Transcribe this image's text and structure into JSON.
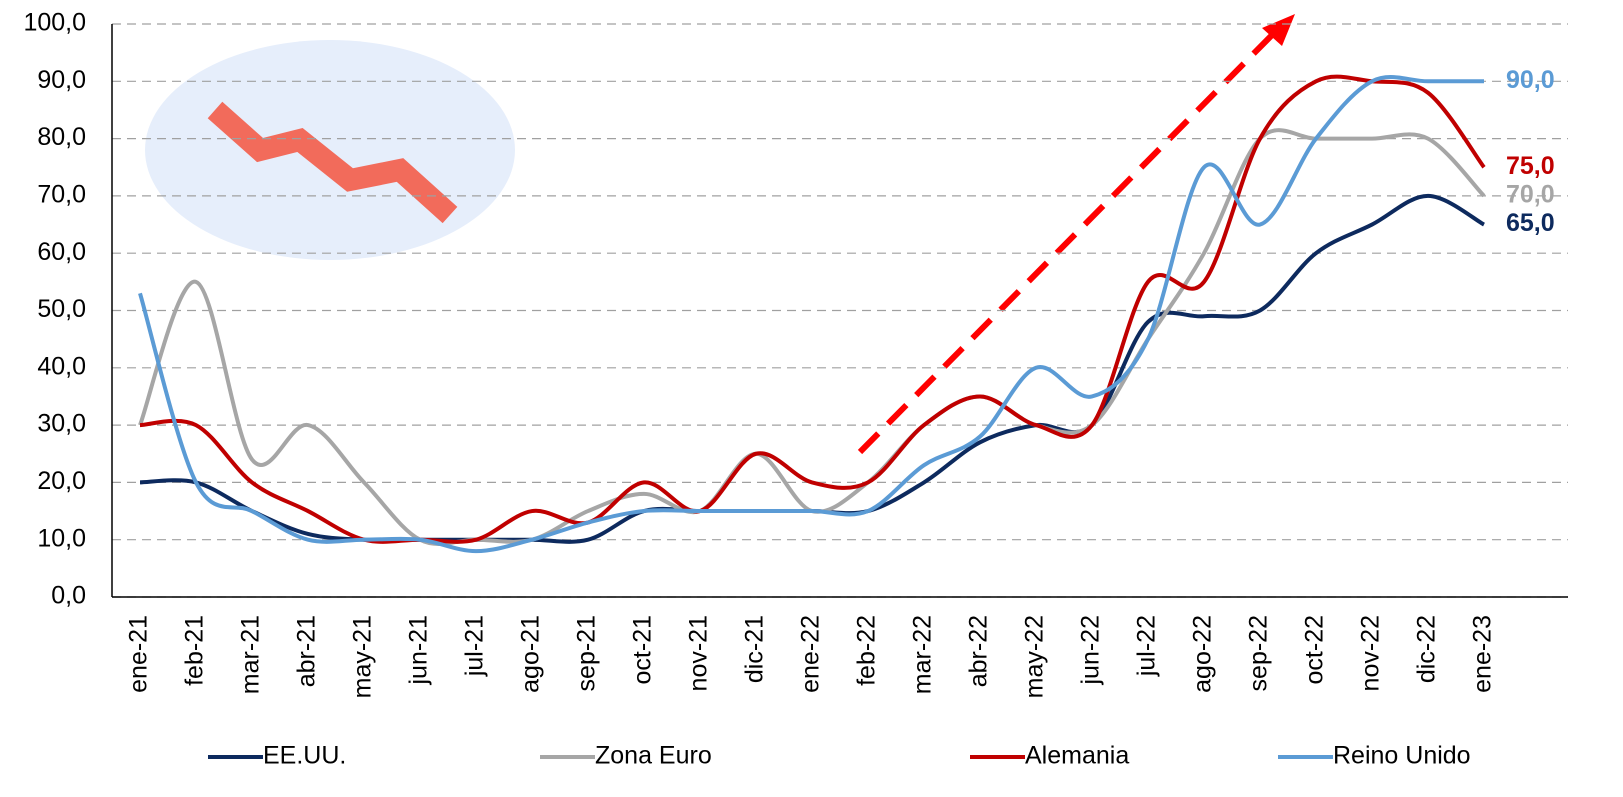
{
  "chart_data": {
    "type": "line",
    "categories": [
      "ene-21",
      "feb-21",
      "mar-21",
      "abr-21",
      "may-21",
      "jun-21",
      "jul-21",
      "ago-21",
      "sep-21",
      "oct-21",
      "nov-21",
      "dic-21",
      "ene-22",
      "feb-22",
      "mar-22",
      "abr-22",
      "may-22",
      "jun-22",
      "jul-22",
      "ago-22",
      "sep-22",
      "oct-22",
      "nov-22",
      "dic-22",
      "ene-23"
    ],
    "series": [
      {
        "name": "EE.UU.",
        "color": "#0d2a5e",
        "values": [
          20,
          20,
          15,
          11,
          10,
          10,
          10,
          10,
          10,
          15,
          15,
          15,
          15,
          15,
          20,
          27,
          30,
          30,
          48,
          49,
          50,
          60,
          65,
          70,
          65
        ],
        "value_labels": [
          null,
          null,
          null,
          null,
          null,
          null,
          null,
          null,
          null,
          null,
          null,
          null,
          null,
          null,
          null,
          null,
          null,
          null,
          null,
          null,
          null,
          null,
          null,
          null,
          "65,0"
        ]
      },
      {
        "name": "Zona Euro",
        "color": "#a6a6a6",
        "values": [
          30,
          55,
          24,
          30,
          20,
          10,
          10,
          10,
          15,
          18,
          15,
          25,
          15,
          20,
          30,
          35,
          30,
          30,
          45,
          60,
          80,
          80,
          80,
          80,
          70
        ],
        "value_labels": [
          null,
          null,
          null,
          null,
          null,
          null,
          null,
          null,
          null,
          null,
          null,
          null,
          null,
          null,
          null,
          null,
          null,
          null,
          null,
          null,
          null,
          null,
          null,
          null,
          "70,0"
        ]
      },
      {
        "name": "Alemania",
        "color": "#c00000",
        "values": [
          30,
          30,
          20,
          15,
          10,
          10,
          10,
          15,
          13,
          20,
          15,
          25,
          20,
          20,
          30,
          35,
          30,
          30,
          55,
          55,
          80,
          90,
          90,
          88,
          75
        ],
        "value_labels": [
          null,
          null,
          null,
          null,
          null,
          null,
          null,
          null,
          null,
          null,
          null,
          null,
          null,
          null,
          null,
          null,
          null,
          null,
          null,
          null,
          null,
          null,
          null,
          null,
          "75,0"
        ]
      },
      {
        "name": "Reino Unido",
        "color": "#5b9bd5",
        "values": [
          53,
          20,
          15,
          10,
          10,
          10,
          8,
          10,
          13,
          15,
          15,
          15,
          15,
          15,
          23,
          28,
          40,
          35,
          45,
          75,
          65,
          80,
          90,
          90,
          90
        ],
        "value_labels": [
          null,
          null,
          null,
          null,
          null,
          null,
          null,
          null,
          null,
          null,
          null,
          null,
          null,
          null,
          null,
          null,
          null,
          null,
          null,
          null,
          null,
          null,
          null,
          null,
          "90,0"
        ]
      }
    ],
    "ylim": [
      0,
      100
    ],
    "yticks": [
      {
        "value": 0,
        "label": "0,0"
      },
      {
        "value": 10,
        "label": "10,0"
      },
      {
        "value": 20,
        "label": "20,0"
      },
      {
        "value": 30,
        "label": "30,0"
      },
      {
        "value": 40,
        "label": "40,0"
      },
      {
        "value": 50,
        "label": "50,0"
      },
      {
        "value": 60,
        "label": "60,0"
      },
      {
        "value": 70,
        "label": "70,0"
      },
      {
        "value": 80,
        "label": "80,0"
      },
      {
        "value": 90,
        "label": "90,0"
      },
      {
        "value": 100,
        "label": "100,0"
      }
    ],
    "grid": true,
    "legend": "bottom"
  }
}
